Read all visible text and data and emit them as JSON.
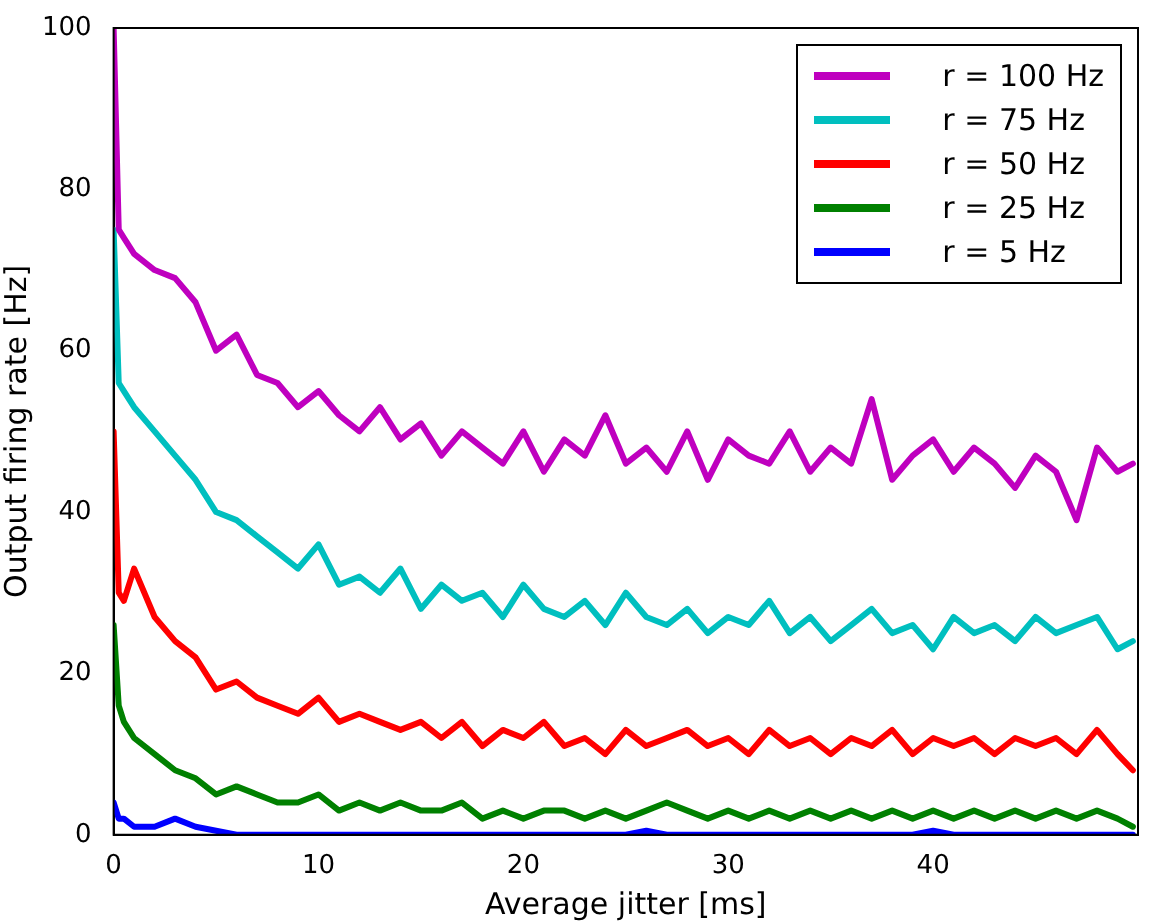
{
  "chart_data": {
    "type": "line",
    "xlabel": "Average jitter [ms]",
    "ylabel": "Output firing rate [Hz]",
    "x": [
      0,
      0.25,
      0.5,
      1,
      2,
      3,
      4,
      5,
      6,
      7,
      8,
      9,
      10,
      11,
      12,
      13,
      14,
      15,
      16,
      17,
      18,
      19,
      20,
      21,
      22,
      23,
      24,
      25,
      26,
      27,
      28,
      29,
      30,
      31,
      32,
      33,
      34,
      35,
      36,
      37,
      38,
      39,
      40,
      41,
      42,
      43,
      44,
      45,
      46,
      47,
      48,
      49,
      49.75
    ],
    "xlim": [
      0,
      50
    ],
    "xticks": [
      0,
      10,
      20,
      30,
      40
    ],
    "ylim": [
      0,
      100
    ],
    "yticks": [
      0,
      20,
      40,
      60,
      80,
      100
    ],
    "grid": false,
    "legend": "top right",
    "marker": "none",
    "line_style": "solid",
    "series": [
      {
        "name": "r = 100 Hz",
        "color": "#bf00bf",
        "values": [
          100,
          75,
          74,
          72,
          70,
          69,
          66,
          60,
          62,
          57,
          56,
          53,
          55,
          52,
          50,
          53,
          49,
          51,
          47,
          50,
          48,
          46,
          50,
          45,
          49,
          47,
          52,
          46,
          48,
          45,
          50,
          44,
          49,
          47,
          46,
          50,
          45,
          48,
          46,
          54,
          44,
          47,
          49,
          45,
          48,
          46,
          43,
          47,
          45,
          39,
          48,
          45,
          46
        ]
      },
      {
        "name": "r = 75 Hz",
        "color": "#00bfbf",
        "values": [
          75,
          56,
          55,
          53,
          50,
          47,
          44,
          40,
          39,
          37,
          35,
          33,
          36,
          31,
          32,
          30,
          33,
          28,
          31,
          29,
          30,
          27,
          31,
          28,
          27,
          29,
          26,
          30,
          27,
          26,
          28,
          25,
          27,
          26,
          29,
          25,
          27,
          24,
          26,
          28,
          25,
          26,
          23,
          27,
          25,
          26,
          24,
          27,
          25,
          26,
          27,
          23,
          24
        ]
      },
      {
        "name": "r = 50 Hz",
        "color": "#ff0000",
        "values": [
          50,
          30,
          29,
          33,
          27,
          24,
          22,
          18,
          19,
          17,
          16,
          15,
          17,
          14,
          15,
          14,
          13,
          14,
          12,
          14,
          11,
          13,
          12,
          14,
          11,
          12,
          10,
          13,
          11,
          12,
          13,
          11,
          12,
          10,
          13,
          11,
          12,
          10,
          12,
          11,
          13,
          10,
          12,
          11,
          12,
          10,
          12,
          11,
          12,
          10,
          13,
          10,
          8
        ]
      },
      {
        "name": "r = 25 Hz",
        "color": "#008000",
        "values": [
          26,
          16,
          14,
          12,
          10,
          8,
          7,
          5,
          6,
          5,
          4,
          4,
          5,
          3,
          4,
          3,
          4,
          3,
          3,
          4,
          2,
          3,
          2,
          3,
          3,
          2,
          3,
          2,
          3,
          4,
          3,
          2,
          3,
          2,
          3,
          2,
          3,
          2,
          3,
          2,
          3,
          2,
          3,
          2,
          3,
          2,
          3,
          2,
          3,
          2,
          3,
          2,
          1
        ]
      },
      {
        "name": "r = 5 Hz",
        "color": "#0000ff",
        "values": [
          4,
          2,
          2,
          1,
          1,
          2,
          1,
          0.5,
          0,
          0,
          0,
          0,
          0,
          0,
          0,
          0,
          0,
          0,
          0,
          0,
          0,
          0,
          0,
          0,
          0,
          0,
          0,
          0,
          0.5,
          0,
          0,
          0,
          0,
          0,
          0,
          0,
          0,
          0,
          0,
          0,
          0,
          0,
          0.5,
          0,
          0,
          0,
          0,
          0,
          0,
          0,
          0,
          0,
          0
        ]
      }
    ]
  }
}
